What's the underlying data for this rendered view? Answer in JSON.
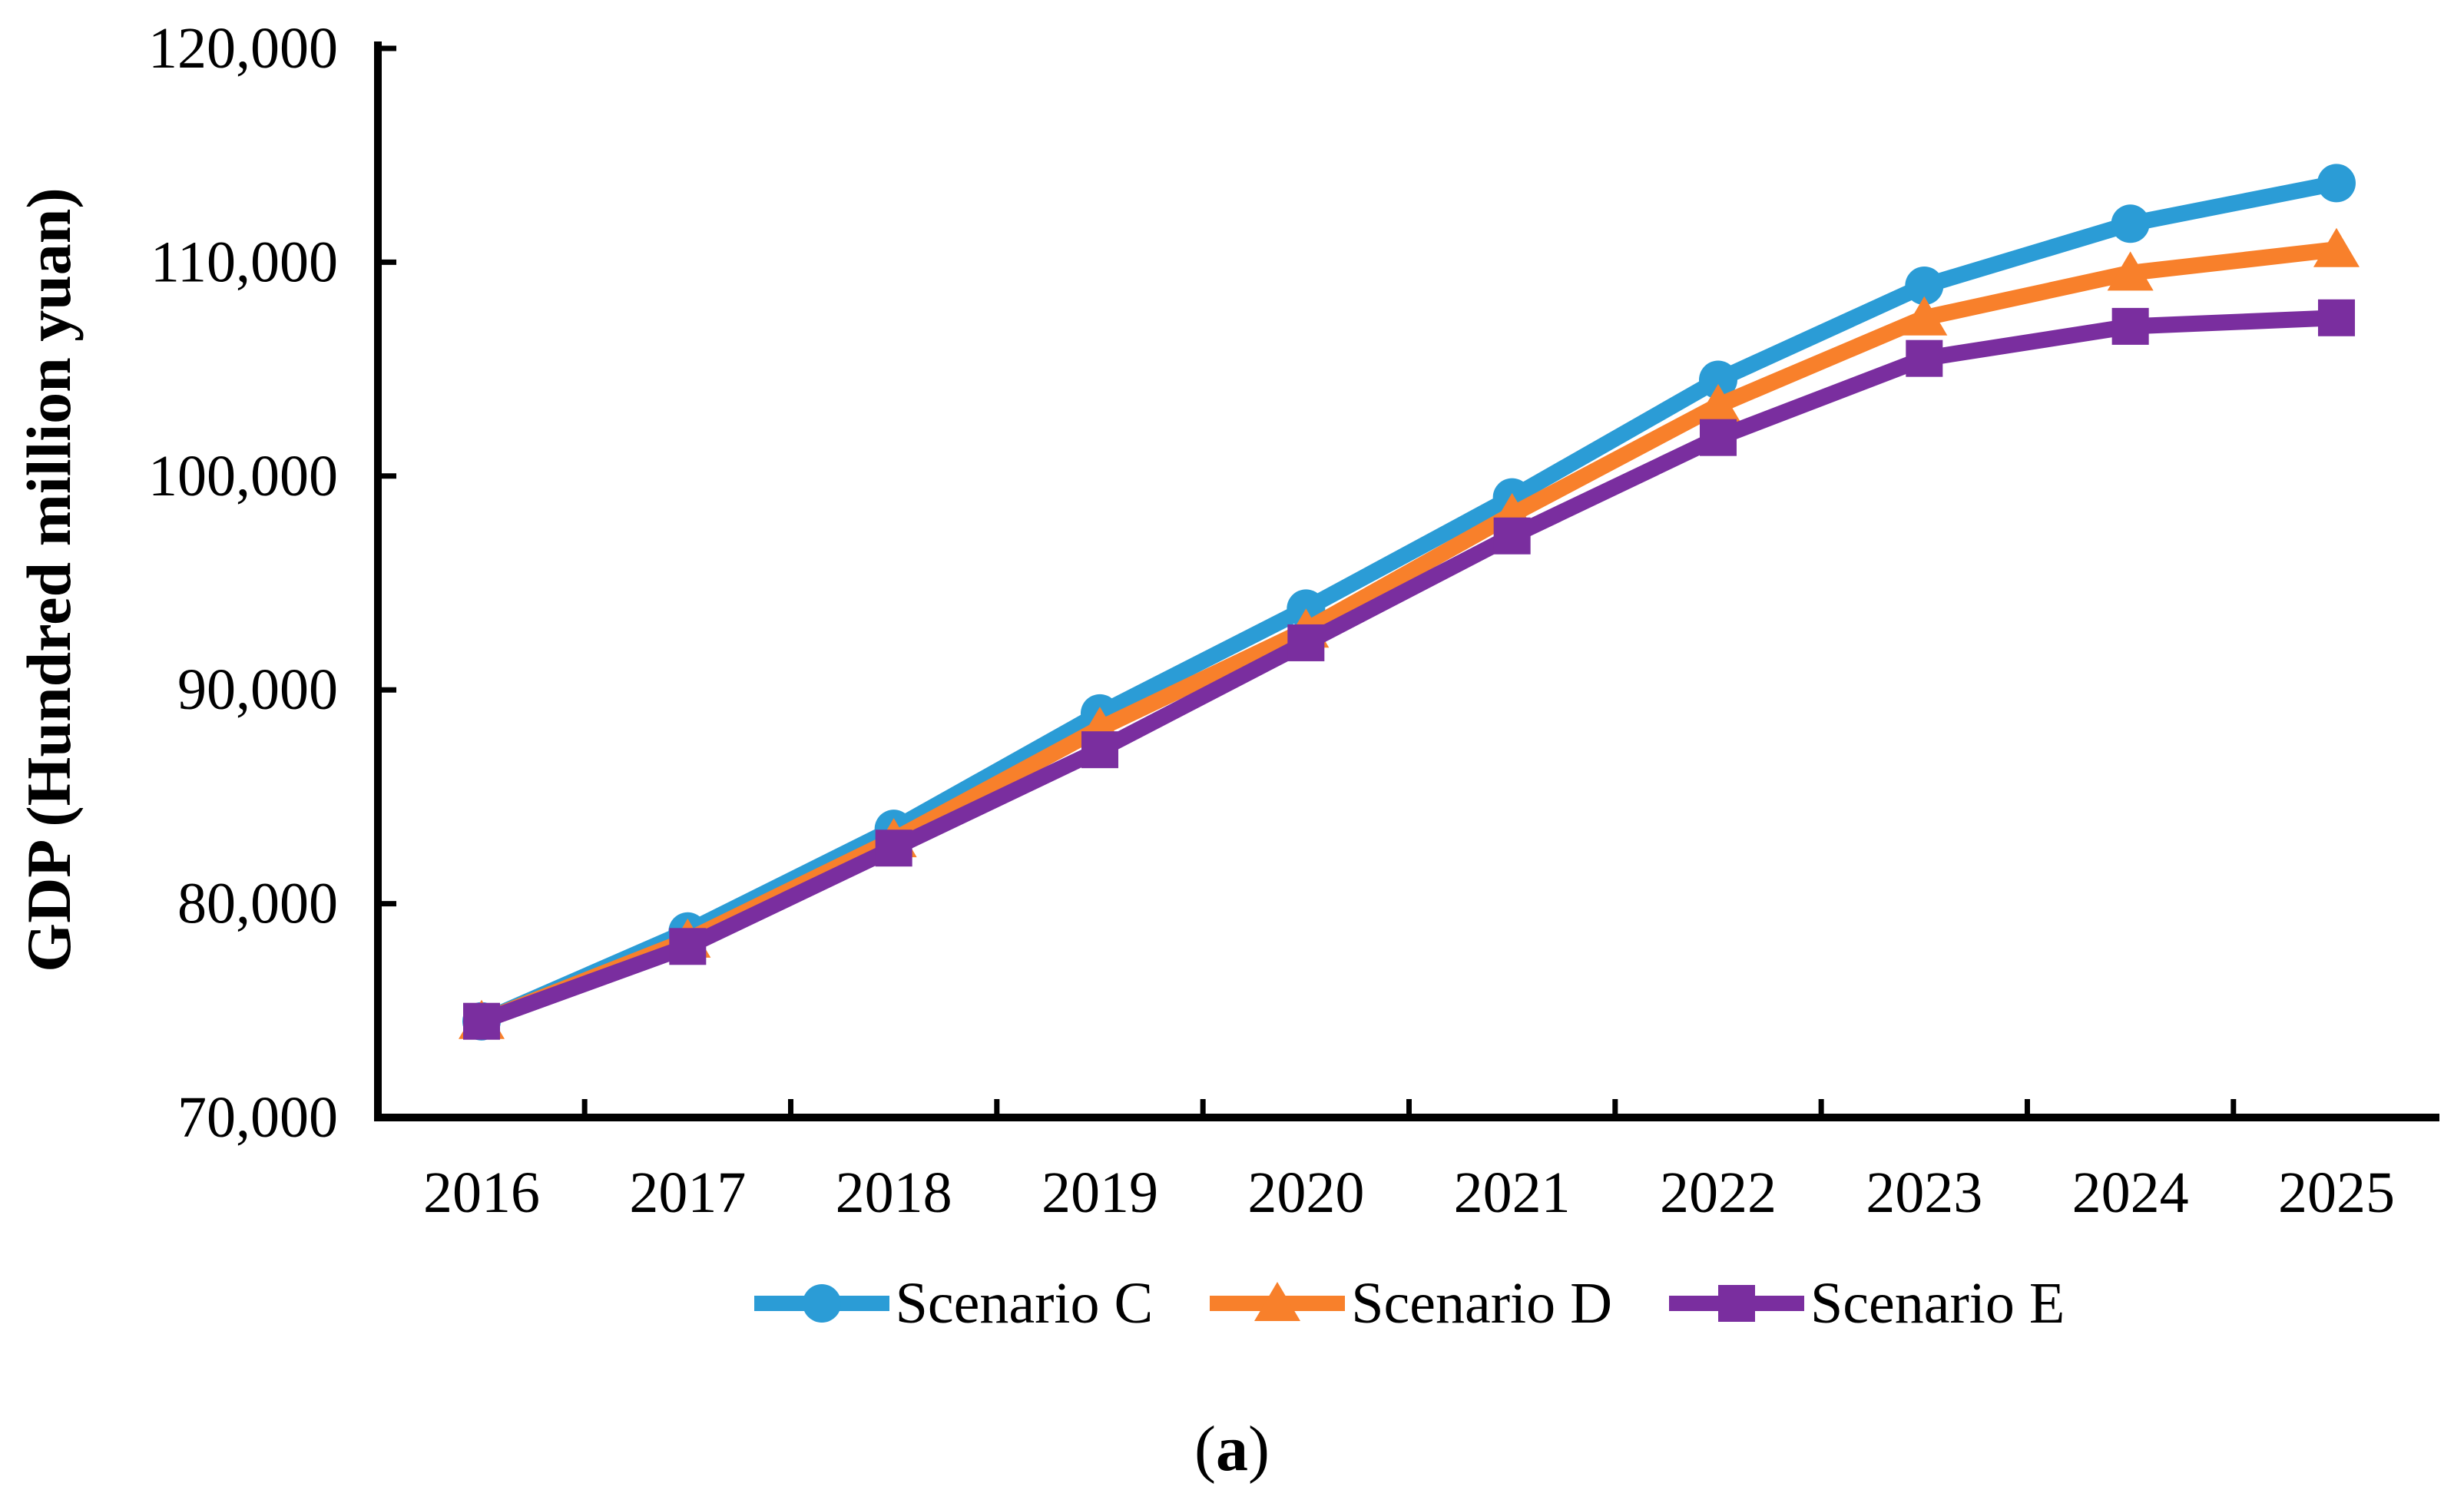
{
  "figure": {
    "caption_prefix": "(",
    "caption_letter": "a",
    "caption_suffix": ")"
  },
  "chart_data": {
    "type": "line",
    "title": "",
    "xlabel": "",
    "ylabel": "GDP (Hundred million yuan)",
    "grid": false,
    "legend_position": "bottom-center",
    "axis_color": "#000000",
    "background_color": "#ffffff",
    "x_categories": [
      "2016",
      "2017",
      "2018",
      "2019",
      "2020",
      "2021",
      "2022",
      "2023",
      "2024",
      "2025"
    ],
    "y_axis": {
      "min": 70000,
      "max": 120000,
      "tick_step": 10000,
      "ticks": [
        {
          "value": 70000,
          "label": "70,000"
        },
        {
          "value": 80000,
          "label": "80,000"
        },
        {
          "value": 90000,
          "label": "90,000"
        },
        {
          "value": 100000,
          "label": "100,000"
        },
        {
          "value": 110000,
          "label": "110,000"
        },
        {
          "value": 120000,
          "label": "120,000"
        }
      ]
    },
    "series": [
      {
        "name": "Scenario C",
        "color": "#2B9CD6",
        "marker": "circle",
        "values": [
          74500,
          78700,
          83500,
          88900,
          93800,
          99000,
          104500,
          108900,
          111800,
          113700
        ]
      },
      {
        "name": "Scenario D",
        "color": "#F8802B",
        "marker": "triangle",
        "values": [
          74500,
          78300,
          83000,
          88200,
          92800,
          98200,
          103300,
          107400,
          109500,
          110600
        ]
      },
      {
        "name": "Scenario E",
        "color": "#7A2E9F",
        "marker": "square",
        "values": [
          74500,
          78000,
          82600,
          87200,
          92200,
          97200,
          101800,
          105500,
          107000,
          107400
        ]
      }
    ]
  }
}
